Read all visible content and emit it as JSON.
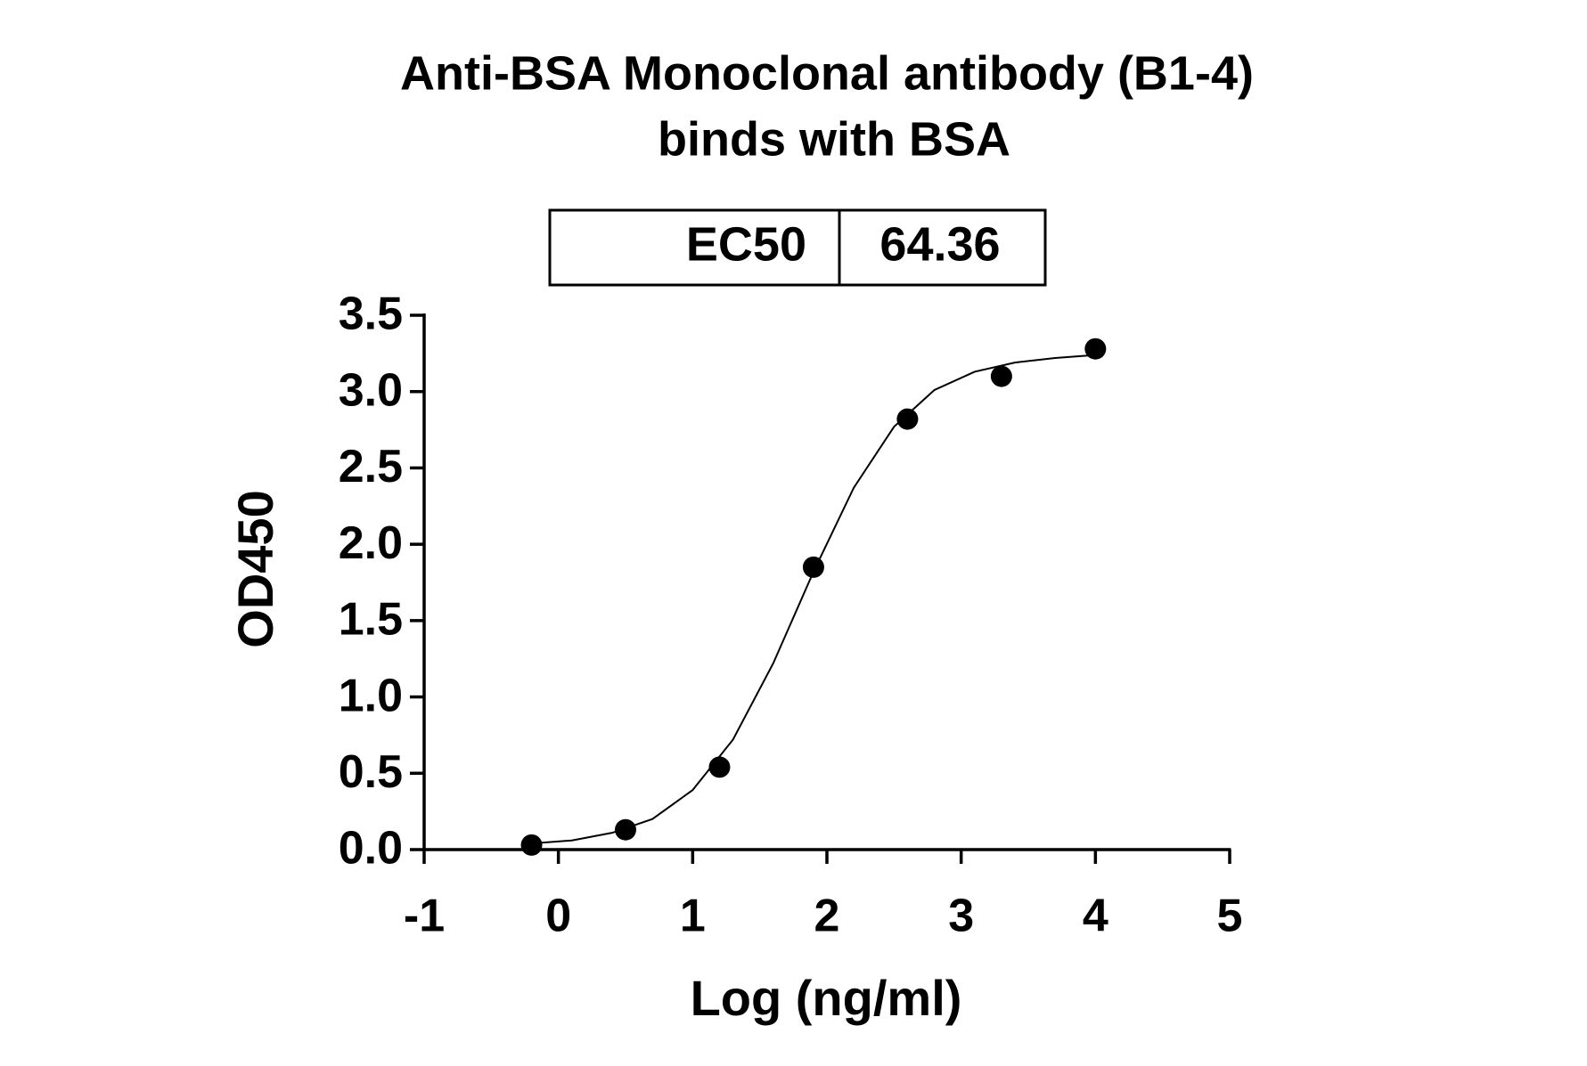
{
  "chart_data": {
    "type": "scatter",
    "title": [
      "Anti-BSA Monoclonal antibody (B1-4)",
      "binds with BSA"
    ],
    "x_label": "Log (ng/ml)",
    "y_label": "OD450",
    "ec50": {
      "label": "EC50",
      "value": 64.36
    },
    "xlim": [
      -1,
      5
    ],
    "xticks": [
      -1,
      0,
      1,
      2,
      3,
      4,
      5
    ],
    "ylim": [
      0,
      3.5
    ],
    "yticks": [
      {
        "value": 0,
        "label": "0.0"
      },
      0.5,
      {
        "value": 1,
        "label": "1.0"
      },
      1.5,
      {
        "value": 2,
        "label": "2.0"
      },
      2.5,
      {
        "value": 3,
        "label": "3.0"
      },
      3.5
    ],
    "series": [
      {
        "type": "scatter",
        "color": "#000000",
        "x": [
          -0.2,
          0.5,
          1.2,
          1.9,
          2.6,
          3.3,
          4.0
        ],
        "values": [
          0.03,
          0.13,
          0.54,
          1.85,
          2.82,
          3.1,
          3.28
        ]
      },
      {
        "type": "line",
        "color": "#000000",
        "x": [
          -0.2,
          0.1,
          0.4,
          0.7,
          1.0,
          1.3,
          1.6,
          1.9,
          2.2,
          2.5,
          2.8,
          3.1,
          3.4,
          3.7,
          4.0
        ],
        "values": [
          0.04,
          0.06,
          0.11,
          0.2,
          0.39,
          0.72,
          1.22,
          1.82,
          2.37,
          2.77,
          3.01,
          3.13,
          3.19,
          3.22,
          3.24
        ]
      }
    ]
  }
}
